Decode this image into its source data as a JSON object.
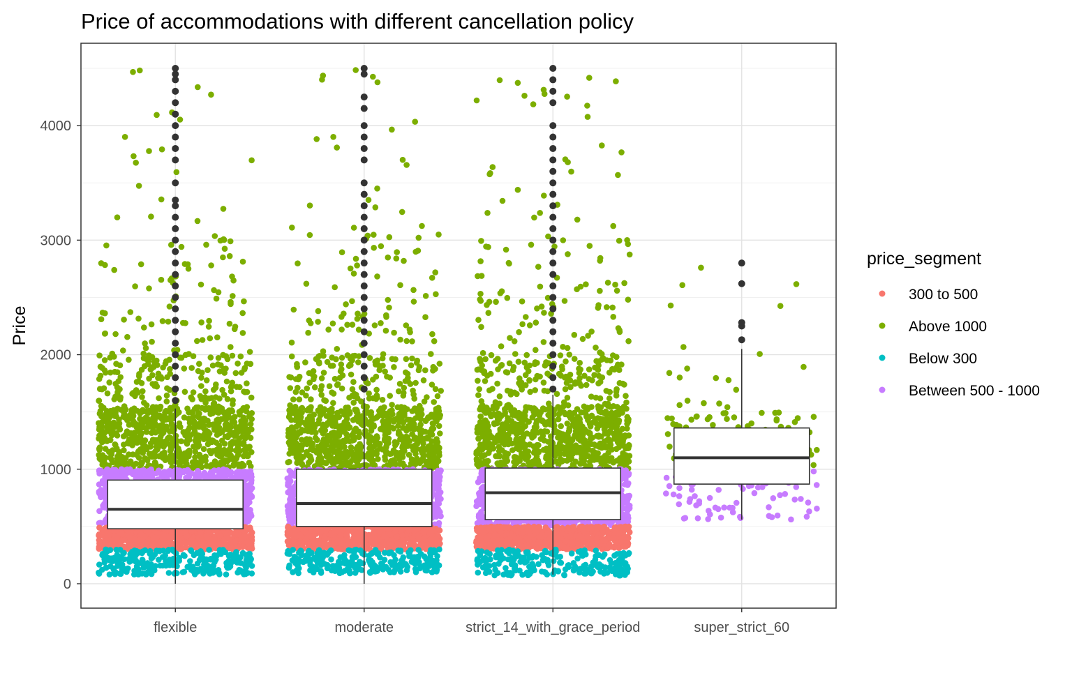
{
  "chart_data": {
    "type": "box",
    "title": "Price of accommodations with different cancellation policy",
    "xlabel": "",
    "ylabel": "Price",
    "categories": [
      "flexible",
      "moderate",
      "strict_14_with_grace_period",
      "super_strict_60"
    ],
    "y_ticks": [
      0,
      1000,
      2000,
      3000,
      4000
    ],
    "ylim": [
      -200,
      4660
    ],
    "grid": true,
    "legend": {
      "title": "price_segment",
      "placement": "right",
      "entries": [
        {
          "name": "300 to 500",
          "color": "#F8766D"
        },
        {
          "name": "Above 1000",
          "color": "#7CAE00"
        },
        {
          "name": "Below 300",
          "color": "#00BFC4"
        },
        {
          "name": "Between 500 - 1000",
          "color": "#C77CFF"
        }
      ]
    },
    "boxes": [
      {
        "category": "flexible",
        "whisker_low": 0,
        "q1": 480,
        "median": 650,
        "q3": 905,
        "whisker_high": 1530,
        "outliers": [
          1600,
          1700,
          1800,
          1900,
          2000,
          2100,
          2200,
          2300,
          2400,
          2500,
          2600,
          2700,
          2800,
          2900,
          3000,
          3100,
          3200,
          3300,
          3350,
          3500,
          3700,
          3800,
          3900,
          4000,
          4100,
          4200,
          4300,
          4400,
          4450,
          4500
        ]
      },
      {
        "category": "moderate",
        "whisker_low": 0,
        "q1": 500,
        "median": 700,
        "q3": 1000,
        "whisker_high": 1620,
        "outliers": [
          1700,
          1800,
          1900,
          2000,
          2100,
          2200,
          2300,
          2400,
          2500,
          2600,
          2700,
          2800,
          2900,
          3000,
          3100,
          3200,
          3300,
          3400,
          3500,
          3700,
          3800,
          3900,
          4000,
          4150,
          4250,
          4450,
          4500
        ]
      },
      {
        "category": "strict_14_with_grace_period",
        "whisker_low": 80,
        "q1": 560,
        "median": 795,
        "q3": 1010,
        "whisker_high": 1650,
        "outliers": [
          1700,
          1800,
          1900,
          2000,
          2100,
          2200,
          2300,
          2400,
          2500,
          2600,
          2700,
          2800,
          2900,
          3000,
          3100,
          3200,
          3300,
          3400,
          3500,
          3600,
          3700,
          3800,
          3900,
          4000,
          4200,
          4300,
          4400,
          4500
        ]
      },
      {
        "category": "super_strict_60",
        "whisker_low": 560,
        "q1": 870,
        "median": 1100,
        "q3": 1360,
        "whisker_high": 2050,
        "outliers": [
          2130,
          2250,
          2280,
          2620,
          2800
        ]
      }
    ],
    "points": [
      {
        "category": "flexible",
        "segment": "Above 1000",
        "count": 700,
        "range": [
          1000,
          1550
        ]
      },
      {
        "category": "flexible",
        "segment": "Above 1000",
        "count": 160,
        "range": [
          1550,
          2000
        ]
      },
      {
        "category": "flexible",
        "segment": "Above 1000",
        "count": 45,
        "range": [
          2000,
          2500
        ]
      },
      {
        "category": "flexible",
        "segment": "Above 1000",
        "count": 35,
        "range": [
          2500,
          3050
        ]
      },
      {
        "category": "flexible",
        "segment": "Above 1000",
        "count": 20,
        "range": [
          3050,
          4500
        ]
      },
      {
        "category": "flexible",
        "segment": "Between 500 - 1000",
        "count": 900,
        "range": [
          500,
          1000
        ]
      },
      {
        "category": "flexible",
        "segment": "300 to 500",
        "count": 700,
        "range": [
          300,
          500
        ]
      },
      {
        "category": "flexible",
        "segment": "Below 300",
        "count": 260,
        "range": [
          80,
          300
        ]
      },
      {
        "category": "moderate",
        "segment": "Above 1000",
        "count": 700,
        "range": [
          1000,
          1550
        ]
      },
      {
        "category": "moderate",
        "segment": "Above 1000",
        "count": 150,
        "range": [
          1550,
          2000
        ]
      },
      {
        "category": "moderate",
        "segment": "Above 1000",
        "count": 45,
        "range": [
          2000,
          2500
        ]
      },
      {
        "category": "moderate",
        "segment": "Above 1000",
        "count": 30,
        "range": [
          2500,
          3050
        ]
      },
      {
        "category": "moderate",
        "segment": "Above 1000",
        "count": 20,
        "range": [
          3050,
          4500
        ]
      },
      {
        "category": "moderate",
        "segment": "Between 500 - 1000",
        "count": 900,
        "range": [
          500,
          1000
        ]
      },
      {
        "category": "moderate",
        "segment": "300 to 500",
        "count": 700,
        "range": [
          300,
          500
        ]
      },
      {
        "category": "moderate",
        "segment": "Below 300",
        "count": 240,
        "range": [
          90,
          300
        ]
      },
      {
        "category": "strict_14_with_grace_period",
        "segment": "Above 1000",
        "count": 700,
        "range": [
          1000,
          1550
        ]
      },
      {
        "category": "strict_14_with_grace_period",
        "segment": "Above 1000",
        "count": 160,
        "range": [
          1550,
          2000
        ]
      },
      {
        "category": "strict_14_with_grace_period",
        "segment": "Above 1000",
        "count": 50,
        "range": [
          2000,
          2500
        ]
      },
      {
        "category": "strict_14_with_grace_period",
        "segment": "Above 1000",
        "count": 35,
        "range": [
          2500,
          3050
        ]
      },
      {
        "category": "strict_14_with_grace_period",
        "segment": "Above 1000",
        "count": 30,
        "range": [
          3050,
          4500
        ]
      },
      {
        "category": "strict_14_with_grace_period",
        "segment": "Between 500 - 1000",
        "count": 900,
        "range": [
          500,
          1000
        ]
      },
      {
        "category": "strict_14_with_grace_period",
        "segment": "300 to 500",
        "count": 700,
        "range": [
          300,
          500
        ]
      },
      {
        "category": "strict_14_with_grace_period",
        "segment": "Below 300",
        "count": 220,
        "range": [
          70,
          300
        ]
      },
      {
        "category": "super_strict_60",
        "segment": "Above 1000",
        "count": 110,
        "range": [
          1000,
          1500
        ]
      },
      {
        "category": "super_strict_60",
        "segment": "Above 1000",
        "count": 14,
        "range": [
          1500,
          2300
        ]
      },
      {
        "category": "super_strict_60",
        "segment": "Above 1000",
        "count": 5,
        "range": [
          2300,
          2800
        ]
      },
      {
        "category": "super_strict_60",
        "segment": "Between 500 - 1000",
        "count": 80,
        "range": [
          560,
          1000
        ]
      }
    ]
  }
}
